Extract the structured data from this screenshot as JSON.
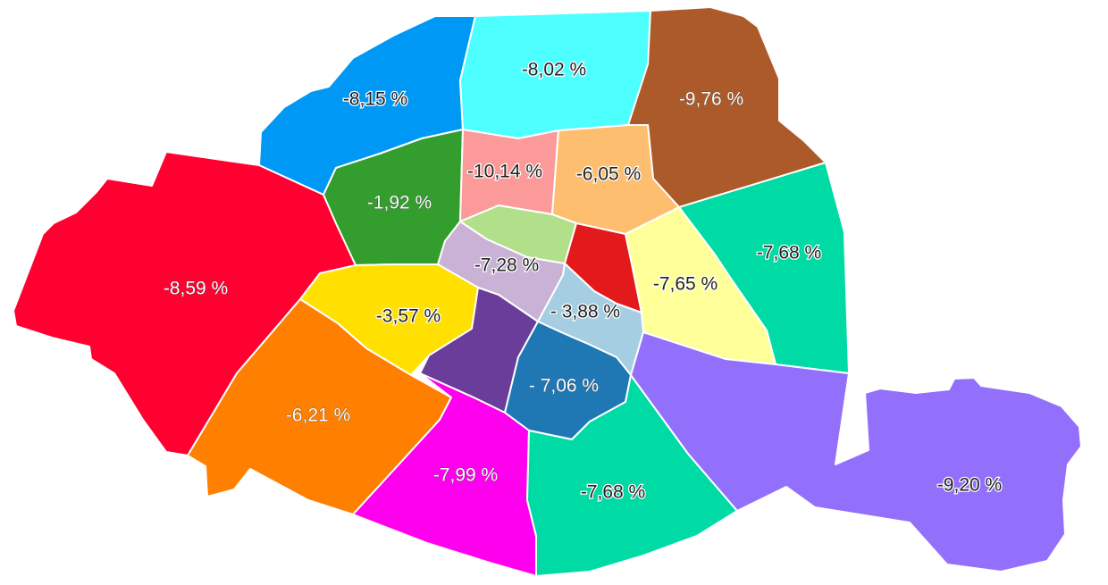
{
  "map": {
    "districts": [
      {
        "id": "nw-blue",
        "value": "-8,15 %",
        "color": "#0098f5"
      },
      {
        "id": "n-cyan",
        "value": "-8,02 %",
        "color": "#4dffff"
      },
      {
        "id": "ne-brown",
        "value": "-9,76 %",
        "color": "#ad5a2a"
      },
      {
        "id": "w-red",
        "value": "-8,59 %",
        "color": "#ff0030"
      },
      {
        "id": "green",
        "value": "-1,92 %",
        "color": "#339e2e"
      },
      {
        "id": "pink",
        "value": "-10,14 %",
        "color": "#fb9a99"
      },
      {
        "id": "orange-light",
        "value": "-6,05 %",
        "color": "#fdbf6f"
      },
      {
        "id": "e-teal",
        "value": "-7,68 %",
        "color": "#00dba6"
      },
      {
        "id": "center-lime",
        "value": "",
        "color": "#b2df8a"
      },
      {
        "id": "center-lilac",
        "value": "-7,28 %",
        "color": "#cab2d6"
      },
      {
        "id": "center-red",
        "value": "",
        "color": "#e31a1c"
      },
      {
        "id": "yellow-light",
        "value": "-7,65 %",
        "color": "#ffff99"
      },
      {
        "id": "yellow",
        "value": "-3,57 %",
        "color": "#ffe000"
      },
      {
        "id": "light-blue",
        "value": "- 3,88 %",
        "color": "#a6cee3"
      },
      {
        "id": "purple",
        "value": "",
        "color": "#6a3d9a"
      },
      {
        "id": "sw-orange",
        "value": "-6,21 %",
        "color": "#ff7f00"
      },
      {
        "id": "blue",
        "value": "- 7,06 %",
        "color": "#1f78b4"
      },
      {
        "id": "magenta",
        "value": "-7,99 %",
        "color": "#ff00ee"
      },
      {
        "id": "s-teal",
        "value": "-7,68 %",
        "color": "#00dba6"
      },
      {
        "id": "se-violet",
        "value": "-9,20 %",
        "color": "#9370fb"
      }
    ]
  }
}
